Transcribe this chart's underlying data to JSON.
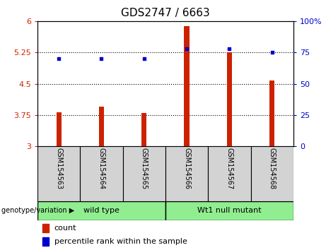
{
  "title": "GDS2747 / 6663",
  "samples": [
    "GSM154563",
    "GSM154564",
    "GSM154565",
    "GSM154566",
    "GSM154567",
    "GSM154568"
  ],
  "bar_values": [
    3.82,
    3.95,
    3.8,
    5.88,
    5.25,
    4.57
  ],
  "percentile_values": [
    70,
    70,
    70,
    78,
    78,
    75
  ],
  "bar_color": "#CC2200",
  "dot_color": "#0000CC",
  "ylim_left": [
    3,
    6
  ],
  "ylim_right": [
    0,
    100
  ],
  "yticks_left": [
    3,
    3.75,
    4.5,
    5.25,
    6
  ],
  "ytick_labels_left": [
    "3",
    "3.75",
    "4.5",
    "5.25",
    "6"
  ],
  "yticks_right": [
    0,
    25,
    50,
    75,
    100
  ],
  "ytick_labels_right": [
    "0",
    "25",
    "50",
    "75",
    "100%"
  ],
  "hlines": [
    3.75,
    4.5,
    5.25
  ],
  "groups": [
    {
      "label": "wild type",
      "samples": [
        0,
        1,
        2
      ],
      "color": "#90EE90"
    },
    {
      "label": "Wt1 null mutant",
      "samples": [
        3,
        4,
        5
      ],
      "color": "#90EE90"
    }
  ],
  "group_label": "genotype/variation",
  "legend_count_label": "count",
  "legend_percentile_label": "percentile rank within the sample",
  "bar_width": 0.12,
  "background_color": "#ffffff",
  "plot_bg_color": "#ffffff",
  "tick_area_color": "#d3d3d3",
  "title_fontsize": 11,
  "axis_fontsize": 8
}
